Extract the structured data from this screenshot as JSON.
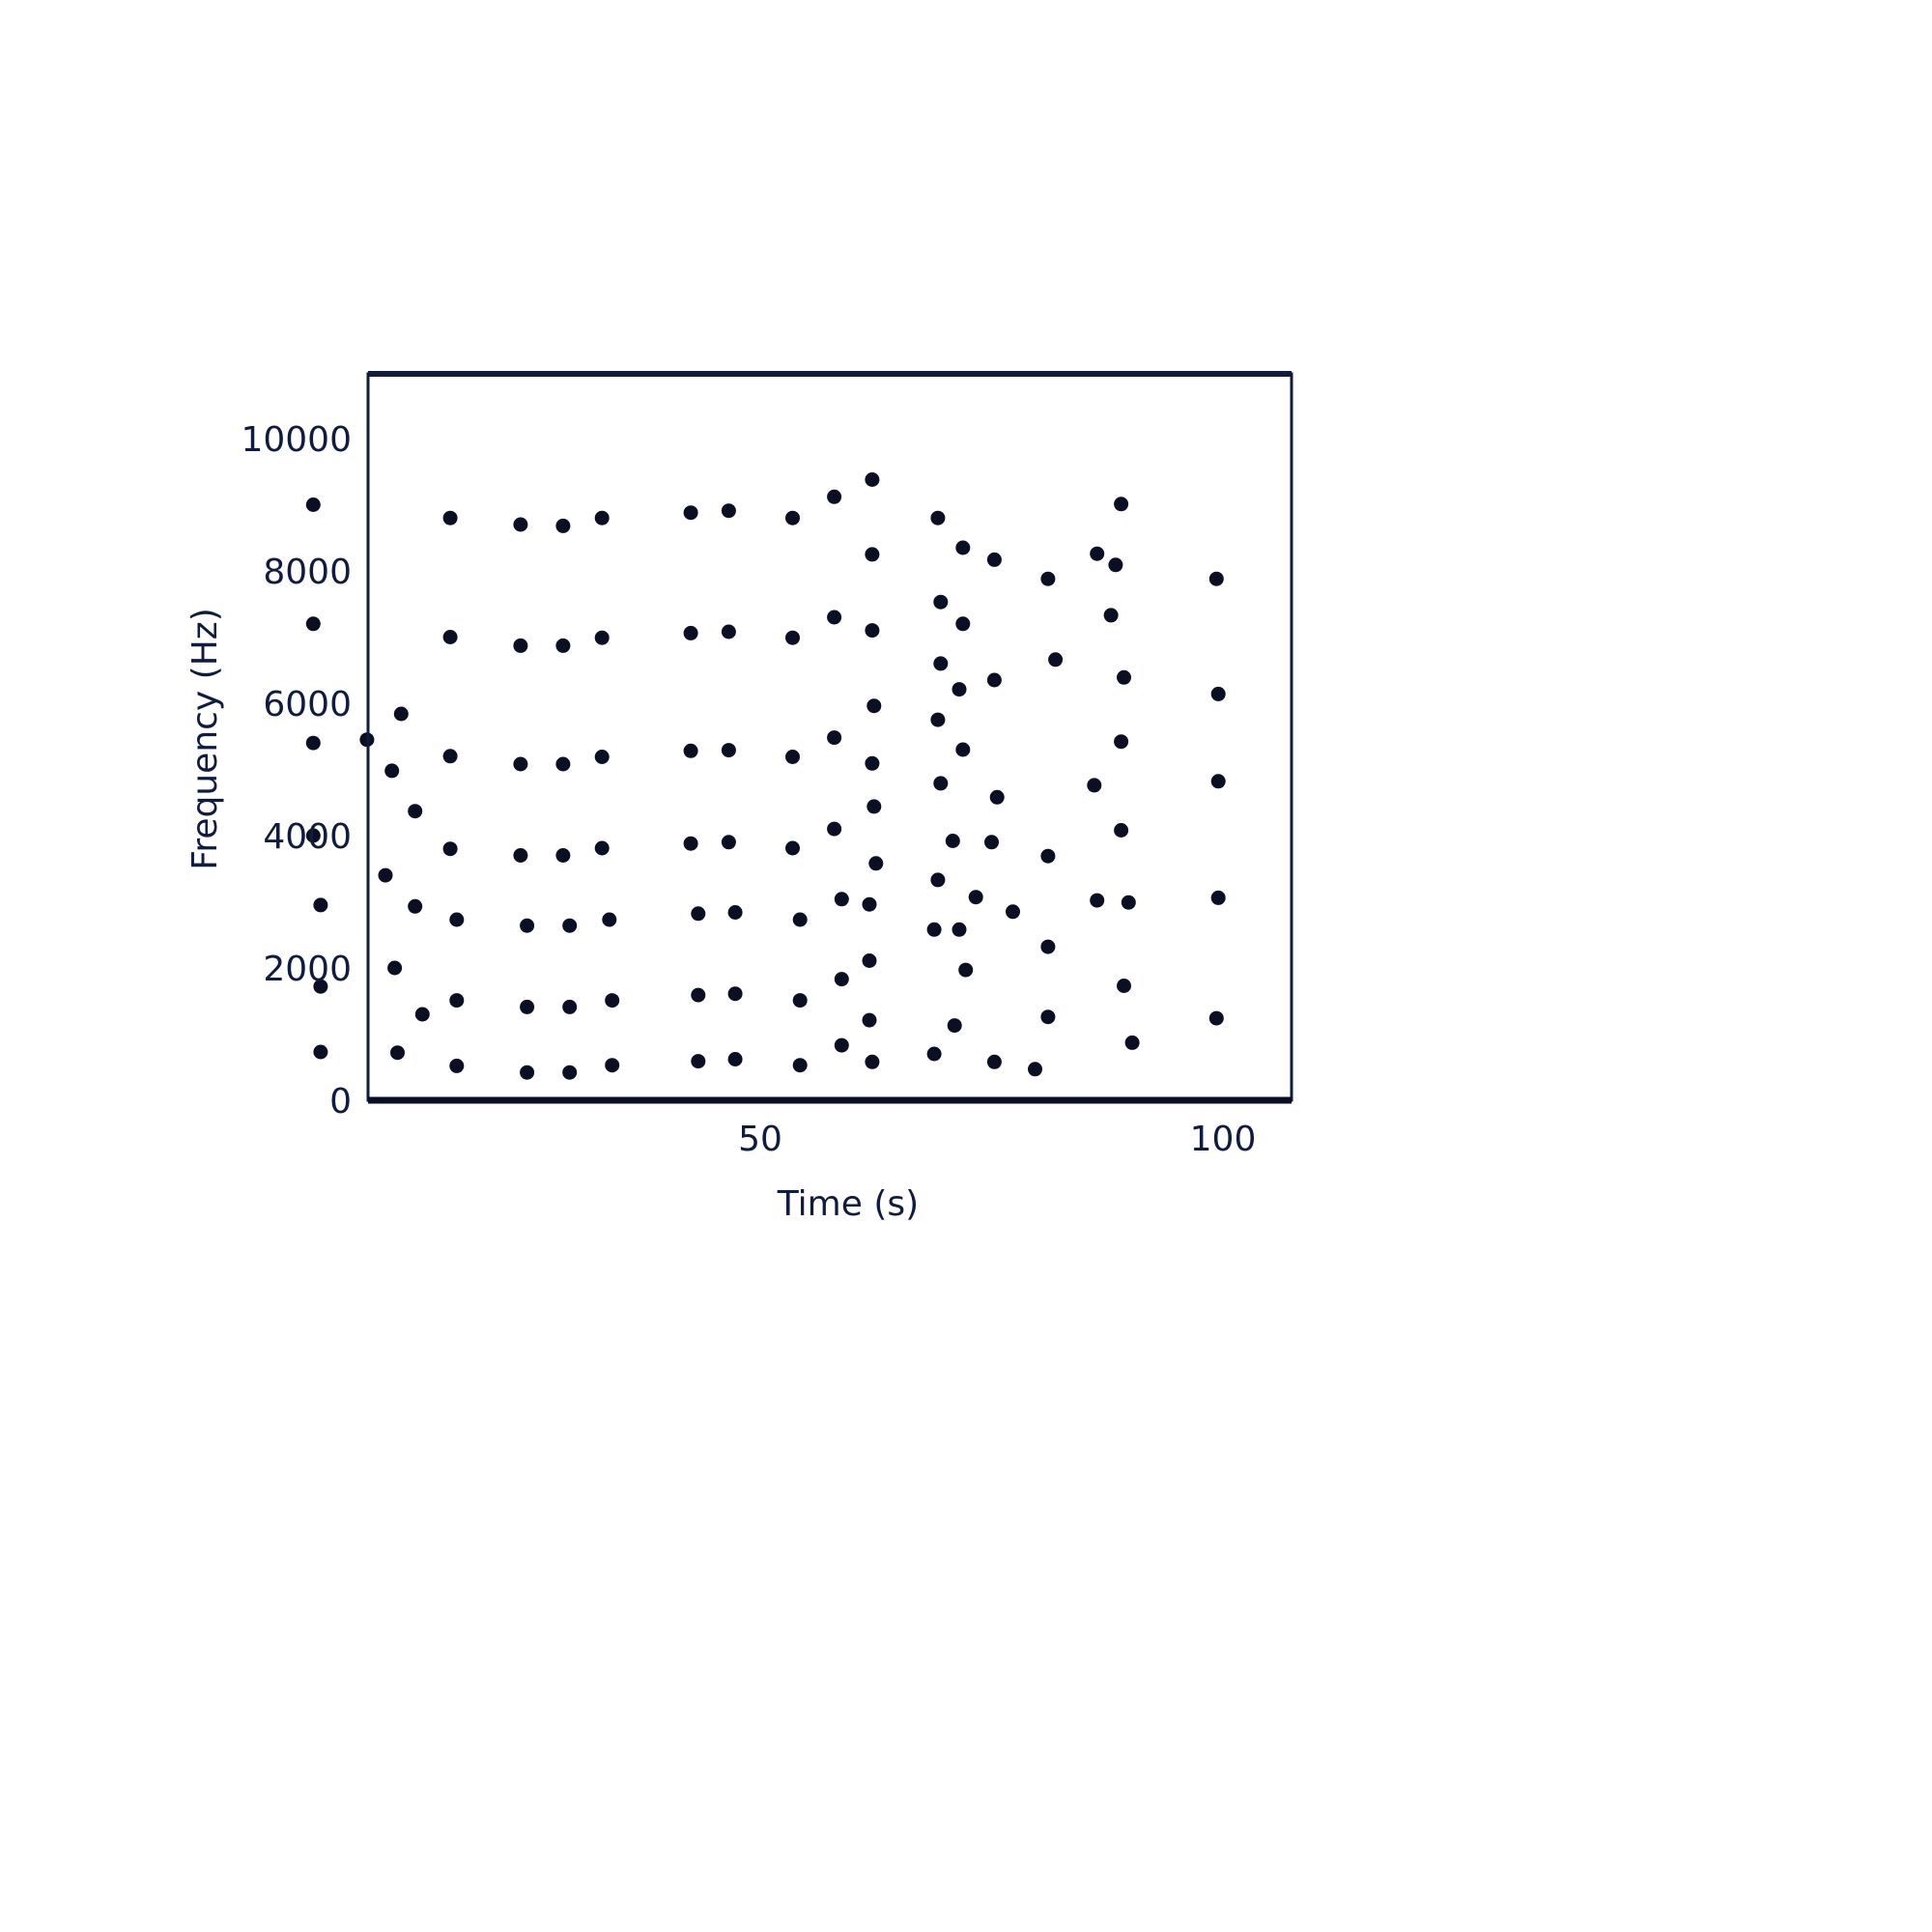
{
  "chart_data": {
    "type": "scatter",
    "title": "",
    "xlabel": "Time (s)",
    "ylabel": "Frequency (Hz)",
    "xlim": [
      0,
      100
    ],
    "ylim": [
      0,
      10000
    ],
    "xticks": [
      50,
      100
    ],
    "xtick_labels": [
      "50",
      "100"
    ],
    "yticks": [
      0,
      2000,
      4000,
      6000,
      8000,
      10000
    ],
    "ytick_labels": [
      "0",
      "2000",
      "4000",
      "6000",
      "8000",
      "10000"
    ],
    "grid": false,
    "legend": "none",
    "marker_color": "#0a0f24",
    "axis_color": "#0f1c3f",
    "series": [
      {
        "points": [
          [
            1.7,
            9000
          ],
          [
            1.7,
            7200
          ],
          [
            1.7,
            5400
          ],
          [
            1.7,
            4000
          ],
          [
            2.5,
            2950
          ],
          [
            2.5,
            1720
          ],
          [
            2.5,
            730
          ],
          [
            7.5,
            5450
          ],
          [
            9.5,
            3400
          ],
          [
            10.2,
            4980
          ],
          [
            10.5,
            2000
          ],
          [
            10.8,
            720
          ],
          [
            11.2,
            5840
          ],
          [
            12.7,
            4370
          ],
          [
            12.7,
            2930
          ],
          [
            13.5,
            1300
          ],
          [
            16.5,
            8800
          ],
          [
            16.5,
            7000
          ],
          [
            16.5,
            5200
          ],
          [
            16.5,
            3800
          ],
          [
            17.2,
            2730
          ],
          [
            17.2,
            1510
          ],
          [
            17.2,
            520
          ],
          [
            24.1,
            8700
          ],
          [
            24.1,
            6870
          ],
          [
            24.1,
            5080
          ],
          [
            24.1,
            3700
          ],
          [
            24.8,
            2640
          ],
          [
            24.8,
            1410
          ],
          [
            24.8,
            420
          ],
          [
            28.7,
            8680
          ],
          [
            28.7,
            6870
          ],
          [
            28.7,
            5080
          ],
          [
            28.7,
            3700
          ],
          [
            29.4,
            2640
          ],
          [
            29.4,
            1410
          ],
          [
            29.4,
            420
          ],
          [
            32.9,
            8800
          ],
          [
            32.9,
            6990
          ],
          [
            32.9,
            5190
          ],
          [
            32.9,
            3810
          ],
          [
            33.7,
            2730
          ],
          [
            34.0,
            1510
          ],
          [
            34.0,
            530
          ],
          [
            42.5,
            8880
          ],
          [
            42.5,
            7060
          ],
          [
            42.5,
            5280
          ],
          [
            42.5,
            3880
          ],
          [
            43.3,
            2820
          ],
          [
            43.3,
            1590
          ],
          [
            43.3,
            590
          ],
          [
            46.6,
            8910
          ],
          [
            46.6,
            7080
          ],
          [
            46.6,
            5290
          ],
          [
            46.6,
            3900
          ],
          [
            47.3,
            2840
          ],
          [
            47.3,
            1610
          ],
          [
            47.3,
            620
          ],
          [
            53.5,
            8800
          ],
          [
            53.5,
            6990
          ],
          [
            53.5,
            5190
          ],
          [
            53.5,
            3810
          ],
          [
            54.3,
            2730
          ],
          [
            54.3,
            1510
          ],
          [
            54.3,
            530
          ],
          [
            58.0,
            9120
          ],
          [
            58.0,
            7300
          ],
          [
            58.0,
            5480
          ],
          [
            58.0,
            4100
          ],
          [
            58.8,
            3040
          ],
          [
            58.8,
            1830
          ],
          [
            58.8,
            830
          ],
          [
            62.1,
            9380
          ],
          [
            62.1,
            7100
          ],
          [
            62.1,
            5090
          ],
          [
            62.3,
            5960
          ],
          [
            62.3,
            4440
          ],
          [
            62.5,
            3580
          ],
          [
            62.1,
            8250
          ],
          [
            61.8,
            2960
          ],
          [
            61.8,
            2110
          ],
          [
            61.8,
            1210
          ],
          [
            62.1,
            580
          ],
          [
            69.2,
            8800
          ],
          [
            69.5,
            7530
          ],
          [
            69.5,
            6600
          ],
          [
            69.2,
            5750
          ],
          [
            69.5,
            4790
          ],
          [
            69.2,
            3330
          ],
          [
            68.8,
            2580
          ],
          [
            68.8,
            700
          ],
          [
            71.9,
            8350
          ],
          [
            71.9,
            7200
          ],
          [
            71.9,
            5300
          ],
          [
            71.5,
            6210
          ],
          [
            70.8,
            3920
          ],
          [
            71.5,
            2580
          ],
          [
            72.2,
            1970
          ],
          [
            71.0,
            1130
          ],
          [
            75.3,
            8170
          ],
          [
            75.3,
            6350
          ],
          [
            75.6,
            4580
          ],
          [
            75.0,
            3900
          ],
          [
            73.3,
            3070
          ],
          [
            75.3,
            580
          ],
          [
            77.3,
            2850
          ],
          [
            81.1,
            7880
          ],
          [
            81.9,
            6660
          ],
          [
            81.1,
            3690
          ],
          [
            81.1,
            2320
          ],
          [
            81.1,
            1260
          ],
          [
            79.7,
            470
          ],
          [
            86.4,
            8260
          ],
          [
            86.1,
            4760
          ],
          [
            86.4,
            3020
          ],
          [
            87.9,
            7330
          ],
          [
            88.4,
            8090
          ],
          [
            89.0,
            9010
          ],
          [
            89.0,
            5420
          ],
          [
            89.0,
            4080
          ],
          [
            89.3,
            6390
          ],
          [
            89.3,
            1730
          ],
          [
            89.8,
            2990
          ],
          [
            90.2,
            870
          ],
          [
            99.3,
            7880
          ],
          [
            99.5,
            6140
          ],
          [
            99.5,
            4820
          ],
          [
            99.5,
            3060
          ],
          [
            99.3,
            1240
          ]
        ]
      }
    ]
  }
}
